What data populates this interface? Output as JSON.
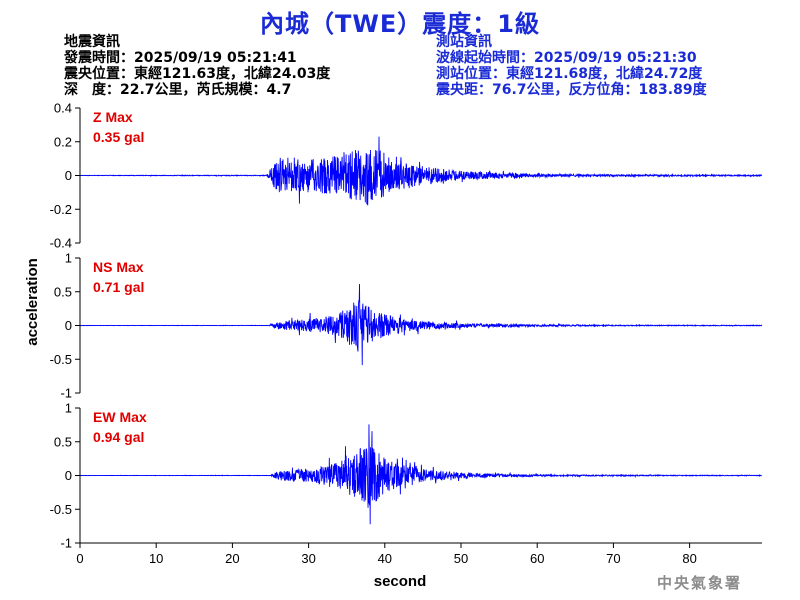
{
  "title": "內城（TWE）震度：1級",
  "earthquake_info": {
    "heading": "地震資訊",
    "origin_time": "發震時間：2025/09/19 05:21:41",
    "epicenter": "震央位置：東經121.63度，北緯24.03度",
    "depth_magnitude": "深　度：22.7公里，芮氏規模：4.7"
  },
  "station_info": {
    "heading": "測站資訊",
    "waveform_start": "波線起始時間：2025/09/19 05:21:30",
    "station_location": "測站位置：東經121.68度，北緯24.72度",
    "distance_azimuth": "震央距：76.7公里，反方位角：183.89度"
  },
  "watermark": "中央氣象署",
  "colors": {
    "title": "#1a2bd6",
    "trace": "#0000ff",
    "max_label": "#e00000",
    "axis": "#000000"
  },
  "chart_data": {
    "type": "line",
    "xlabel": "second",
    "ylabel": "acceleration",
    "xlim": [
      0,
      89.5
    ],
    "xticks": [
      0,
      10,
      20,
      30,
      40,
      50,
      60,
      70,
      80
    ],
    "xtick_labels": [
      "0",
      "10",
      "20",
      "30",
      "40",
      "50",
      "60",
      "70",
      "80"
    ],
    "grid": false,
    "panels": [
      {
        "component": "Z",
        "max_label": "Z Max",
        "max_value": "0.35 gal",
        "ylim": [
          -0.4,
          0.4
        ],
        "yticks": [
          -0.4,
          -0.2,
          0,
          0.2,
          0.4
        ],
        "ytick_labels": [
          "-0.4",
          "-0.2",
          "0",
          "0.2",
          "0.4"
        ],
        "trace_onset": 24.8,
        "envelope": [
          [
            0,
            0.002
          ],
          [
            24.5,
            0.004
          ],
          [
            25.5,
            0.14
          ],
          [
            27,
            0.2
          ],
          [
            30,
            0.18
          ],
          [
            33,
            0.2
          ],
          [
            35,
            0.24
          ],
          [
            37,
            0.3
          ],
          [
            38.5,
            0.35
          ],
          [
            40,
            0.22
          ],
          [
            43,
            0.14
          ],
          [
            46,
            0.09
          ],
          [
            50,
            0.05
          ],
          [
            55,
            0.03
          ],
          [
            60,
            0.018
          ],
          [
            70,
            0.01
          ],
          [
            89.5,
            0.006
          ]
        ]
      },
      {
        "component": "NS",
        "max_label": "NS Max",
        "max_value": "0.71 gal",
        "ylim": [
          -1,
          1
        ],
        "yticks": [
          -1,
          -0.5,
          0,
          0.5,
          1
        ],
        "ytick_labels": [
          "-1",
          "-0.5",
          "0",
          "0.5",
          "1"
        ],
        "trace_onset": 25.0,
        "envelope": [
          [
            0,
            0.003
          ],
          [
            24.8,
            0.005
          ],
          [
            26,
            0.1
          ],
          [
            28,
            0.16
          ],
          [
            32,
            0.22
          ],
          [
            34,
            0.35
          ],
          [
            35.5,
            0.55
          ],
          [
            36.5,
            0.71
          ],
          [
            38,
            0.5
          ],
          [
            40,
            0.3
          ],
          [
            43,
            0.17
          ],
          [
            47,
            0.09
          ],
          [
            52,
            0.05
          ],
          [
            58,
            0.03
          ],
          [
            70,
            0.012
          ],
          [
            89.5,
            0.008
          ]
        ]
      },
      {
        "component": "EW",
        "max_label": "EW Max",
        "max_value": "0.94 gal",
        "ylim": [
          -1,
          1
        ],
        "yticks": [
          -1,
          -0.5,
          0,
          0.5,
          1
        ],
        "ytick_labels": [
          "-1",
          "-0.5",
          "0",
          "0.5",
          "1"
        ],
        "trace_onset": 25.2,
        "envelope": [
          [
            0,
            0.003
          ],
          [
            25,
            0.005
          ],
          [
            26,
            0.12
          ],
          [
            28,
            0.16
          ],
          [
            31,
            0.2
          ],
          [
            34,
            0.38
          ],
          [
            36,
            0.6
          ],
          [
            37,
            0.8
          ],
          [
            38,
            0.9
          ],
          [
            39.5,
            0.55
          ],
          [
            42,
            0.3
          ],
          [
            45,
            0.17
          ],
          [
            50,
            0.08
          ],
          [
            56,
            0.04
          ],
          [
            62,
            0.02
          ],
          [
            75,
            0.012
          ],
          [
            89.5,
            0.008
          ]
        ]
      }
    ]
  }
}
